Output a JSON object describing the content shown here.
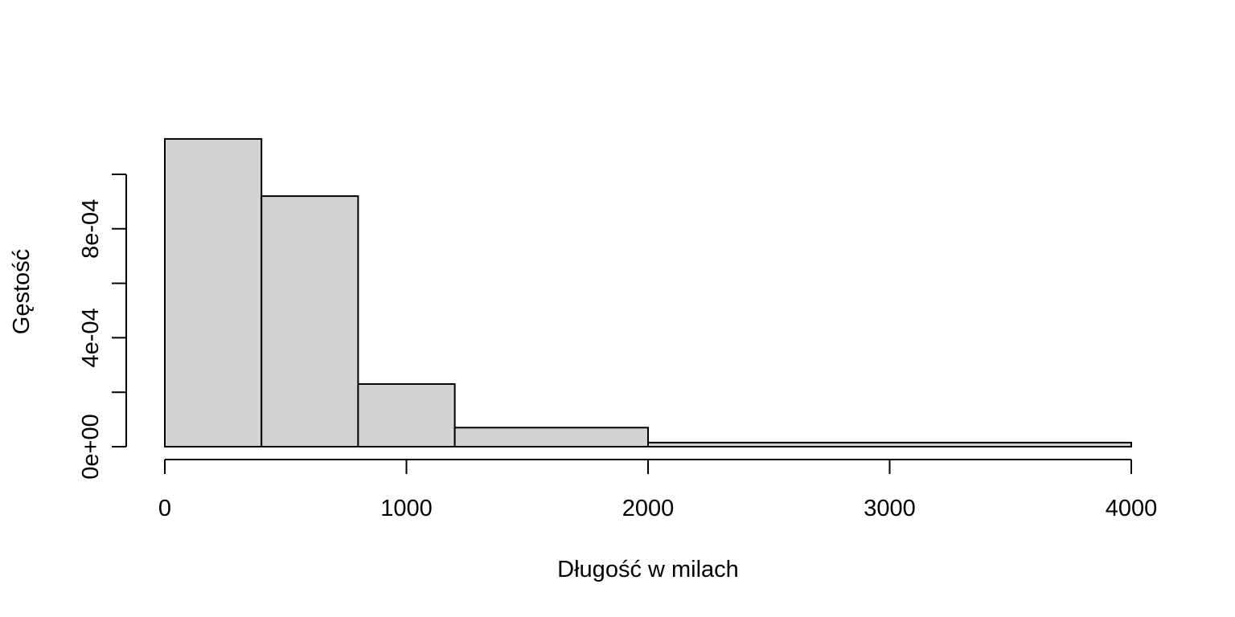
{
  "chart_data": {
    "type": "bar",
    "subtype": "histogram",
    "title": "",
    "xlabel": "Długość w milach",
    "ylabel": "Gęstość",
    "bins": [
      {
        "start": 0,
        "end": 400,
        "density": 0.00113
      },
      {
        "start": 400,
        "end": 800,
        "density": 0.00092
      },
      {
        "start": 800,
        "end": 1200,
        "density": 0.00023
      },
      {
        "start": 1200,
        "end": 2000,
        "density": 7e-05
      },
      {
        "start": 2000,
        "end": 4000,
        "density": 1.5e-05
      }
    ],
    "xlim": [
      0,
      4000
    ],
    "ylim": [
      0,
      0.001
    ],
    "x_ticks": [
      0,
      1000,
      2000,
      3000,
      4000
    ],
    "x_tick_labels": [
      "0",
      "1000",
      "2000",
      "3000",
      "4000"
    ],
    "y_ticks": [
      0,
      0.0002,
      0.0004,
      0.0006,
      0.0008,
      0.001
    ],
    "y_tick_labels": [
      "0e+00",
      "4e-04",
      "8e-04"
    ],
    "y_labeled_ticks": [
      0,
      0.0004,
      0.0008
    ],
    "grid": false,
    "legend": "none",
    "colors": {
      "bar_fill": "#d3d3d3",
      "bar_stroke": "#000000",
      "axis": "#000000",
      "background": "#ffffff"
    }
  }
}
